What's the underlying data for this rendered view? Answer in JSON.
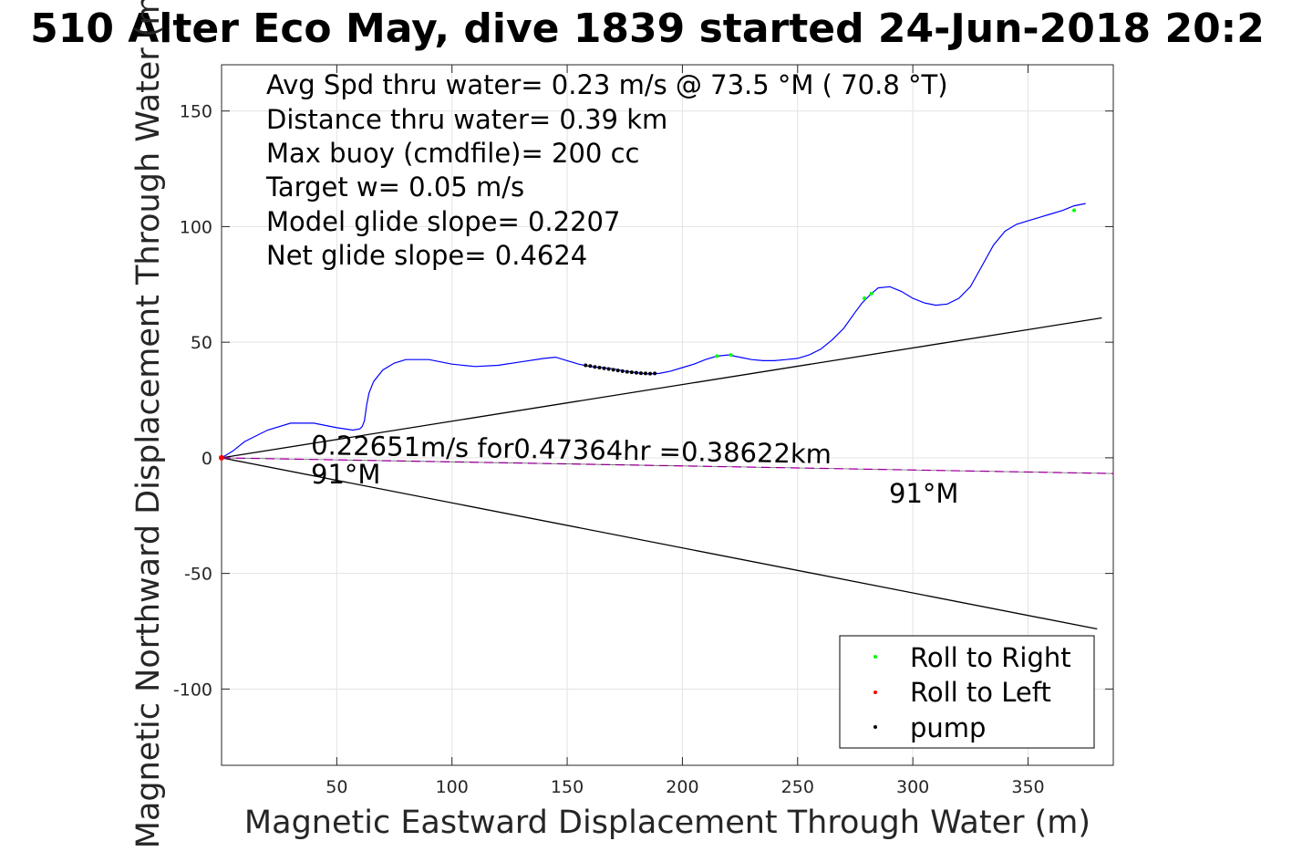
{
  "chart_data": {
    "type": "line",
    "title": "510 Alter Eco May, dive 1839 started 24-Jun-2018 20:2",
    "xlabel": "Magnetic Eastward Displacement Through Water (m)",
    "ylabel": "Magnetic Northward Displacement Through Water (m)",
    "xlim": [
      0,
      387
    ],
    "ylim": [
      -133,
      170
    ],
    "xticks": [
      50,
      100,
      150,
      200,
      250,
      300,
      350
    ],
    "yticks": [
      -100,
      -50,
      0,
      50,
      100,
      150
    ],
    "grid": true,
    "text_box": [
      "Avg Spd thru water=  0.23 m/s @  73.5 °M ( 70.8 °T)",
      "Distance thru water=  0.39 km",
      "Max buoy (cmdfile)= 200 cc",
      "Target w= 0.05 m/s",
      "Model glide slope= 0.2207",
      "Net glide slope= 0.4624"
    ],
    "annotations": {
      "speed_line": "0.22651m/s for0.47364hr =0.38622km",
      "heading_start": "91°M",
      "heading_end": "91°M"
    },
    "series": [
      {
        "name": "track",
        "color": "#0000ff",
        "x": [
          0,
          5,
          10,
          20,
          30,
          40,
          50,
          57,
          60,
          61,
          62,
          63,
          64,
          66,
          70,
          75,
          80,
          90,
          100,
          110,
          120,
          130,
          140,
          145,
          150,
          155,
          160,
          165,
          170,
          175,
          180,
          185,
          190,
          195,
          200,
          205,
          210,
          215,
          220,
          225,
          230,
          235,
          240,
          245,
          250,
          255,
          260,
          265,
          270,
          275,
          278,
          280,
          282,
          285,
          290,
          295,
          300,
          305,
          310,
          315,
          320,
          325,
          330,
          335,
          340,
          345,
          350,
          355,
          360,
          365,
          370,
          375
        ],
        "y": [
          0,
          3,
          7,
          12,
          15,
          15,
          13,
          12,
          12.5,
          13.5,
          16,
          23,
          28,
          33,
          38,
          41,
          42.5,
          42.5,
          40.5,
          39.5,
          40,
          41.5,
          43,
          43.5,
          42,
          40.5,
          39.5,
          39,
          38.5,
          37.5,
          36.8,
          36.3,
          36.5,
          37.5,
          39,
          40.5,
          42.5,
          44,
          44.5,
          43.5,
          42.5,
          42,
          42,
          42.5,
          43,
          44.5,
          47,
          51,
          56,
          63,
          67,
          69,
          71,
          73.5,
          74,
          72,
          69,
          67,
          66,
          66.5,
          69,
          74,
          83,
          92,
          98,
          101,
          102.5,
          104,
          105.5,
          107,
          109,
          110
        ]
      },
      {
        "name": "Roll to Right",
        "color": "#00ff00",
        "x": [
          215,
          221,
          279,
          282,
          370
        ],
        "y": [
          44,
          44.5,
          69,
          71,
          107
        ]
      },
      {
        "name": "Roll to Left",
        "color": "#ff0000",
        "x": [
          0
        ],
        "y": [
          0
        ]
      },
      {
        "name": "pump",
        "color": "#000000",
        "x": [
          158,
          160,
          162,
          164,
          166,
          168,
          170,
          172,
          174,
          176,
          178,
          180,
          182,
          184,
          186,
          188
        ],
        "y": [
          40,
          39.7,
          39.3,
          39,
          38.7,
          38.4,
          38.1,
          37.8,
          37.5,
          37.2,
          37,
          36.8,
          36.6,
          36.5,
          36.4,
          36.5
        ]
      },
      {
        "name": "upper-slope-line",
        "color": "#000000",
        "x": [
          0,
          382
        ],
        "y": [
          0,
          60.5
        ]
      },
      {
        "name": "lower-slope-line",
        "color": "#000000",
        "x": [
          0,
          380
        ],
        "y": [
          0,
          -74
        ]
      },
      {
        "name": "heading-line",
        "color": "#ff00ff",
        "x": [
          0,
          387
        ],
        "y": [
          0,
          -6.8
        ]
      }
    ],
    "legend": {
      "location": "bottom-right",
      "entries": [
        {
          "label": "Roll to Right",
          "color": "#00ff00"
        },
        {
          "label": "Roll to Left",
          "color": "#ff0000"
        },
        {
          "label": "pump",
          "color": "#000000"
        }
      ]
    }
  }
}
